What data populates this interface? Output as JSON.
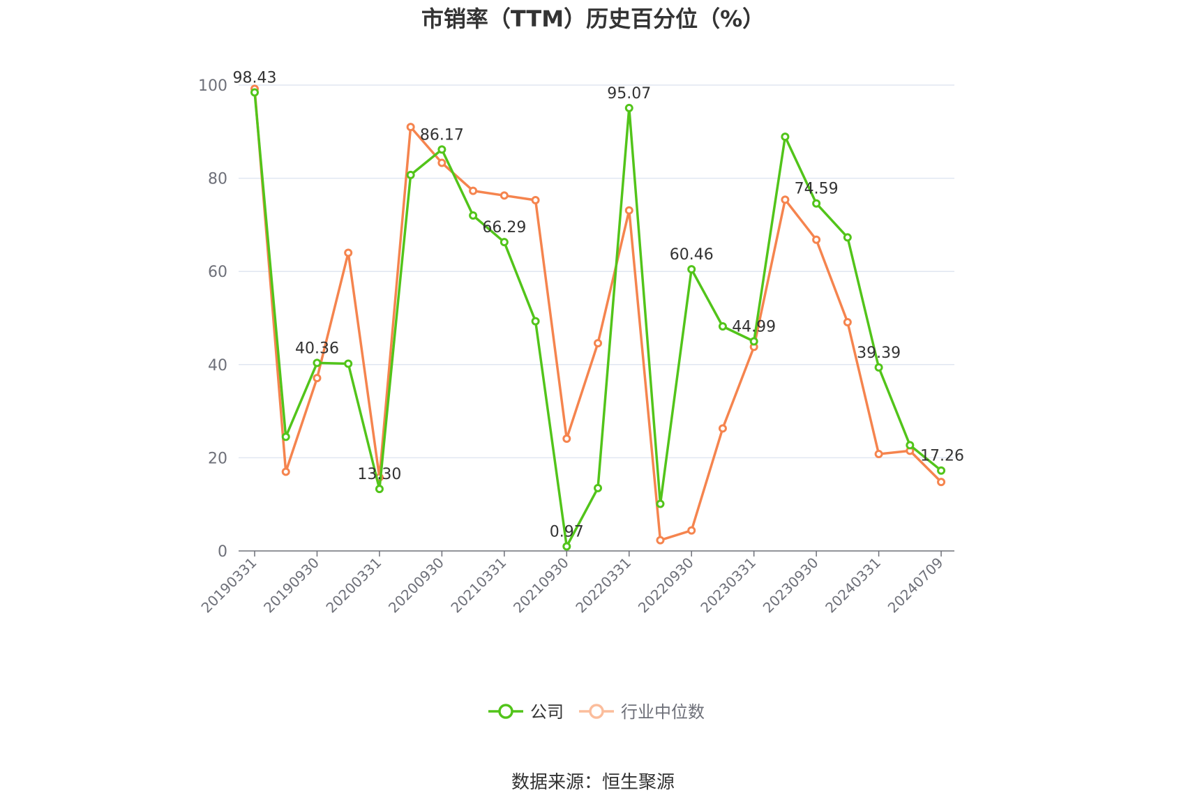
{
  "chart_data": {
    "type": "line",
    "title": "市销率（TTM）历史百分位（%）",
    "source": "数据来源：恒生聚源",
    "x_tick_labels": [
      "20190331",
      "20190930",
      "20200331",
      "20200930",
      "20210331",
      "20210930",
      "20220331",
      "20220930",
      "20230331",
      "20230930",
      "20240331",
      "20240709"
    ],
    "x_tick_points": [
      0,
      2,
      4,
      6,
      8,
      10,
      12,
      14,
      16,
      18,
      20,
      22
    ],
    "ylim": [
      0,
      100
    ],
    "y_ticks": [
      0,
      20,
      40,
      60,
      80,
      100
    ],
    "grid": true,
    "legend_position": "bottom-center",
    "series": [
      {
        "name": "公司",
        "color": "#52c41a",
        "values": [
          98.43,
          24.5,
          40.36,
          40.2,
          13.3,
          80.7,
          86.17,
          72.0,
          66.29,
          49.3,
          0.97,
          13.5,
          95.07,
          10.1,
          60.46,
          48.2,
          44.99,
          88.9,
          74.59,
          67.3,
          39.39,
          22.7,
          17.26
        ],
        "data_labels": [
          {
            "index": 0,
            "text": "98.43"
          },
          {
            "index": 2,
            "text": "40.36"
          },
          {
            "index": 4,
            "text": "13.30"
          },
          {
            "index": 6,
            "text": "86.17"
          },
          {
            "index": 8,
            "text": "66.29"
          },
          {
            "index": 10,
            "text": "0.97"
          },
          {
            "index": 12,
            "text": "95.07"
          },
          {
            "index": 14,
            "text": "60.46"
          },
          {
            "index": 16,
            "text": "44.99"
          },
          {
            "index": 18,
            "text": "74.59"
          },
          {
            "index": 20,
            "text": "39.39"
          },
          {
            "index": 22,
            "text": "17.26"
          }
        ]
      },
      {
        "name": "行业中位数",
        "color": "#f5844e",
        "values": [
          99.2,
          17.0,
          37.1,
          64.0,
          15.8,
          91.0,
          83.3,
          77.3,
          76.3,
          75.3,
          24.1,
          44.6,
          73.1,
          2.3,
          4.4,
          26.3,
          43.8,
          75.4,
          66.8,
          49.1,
          20.8,
          21.5,
          14.8
        ]
      }
    ]
  }
}
